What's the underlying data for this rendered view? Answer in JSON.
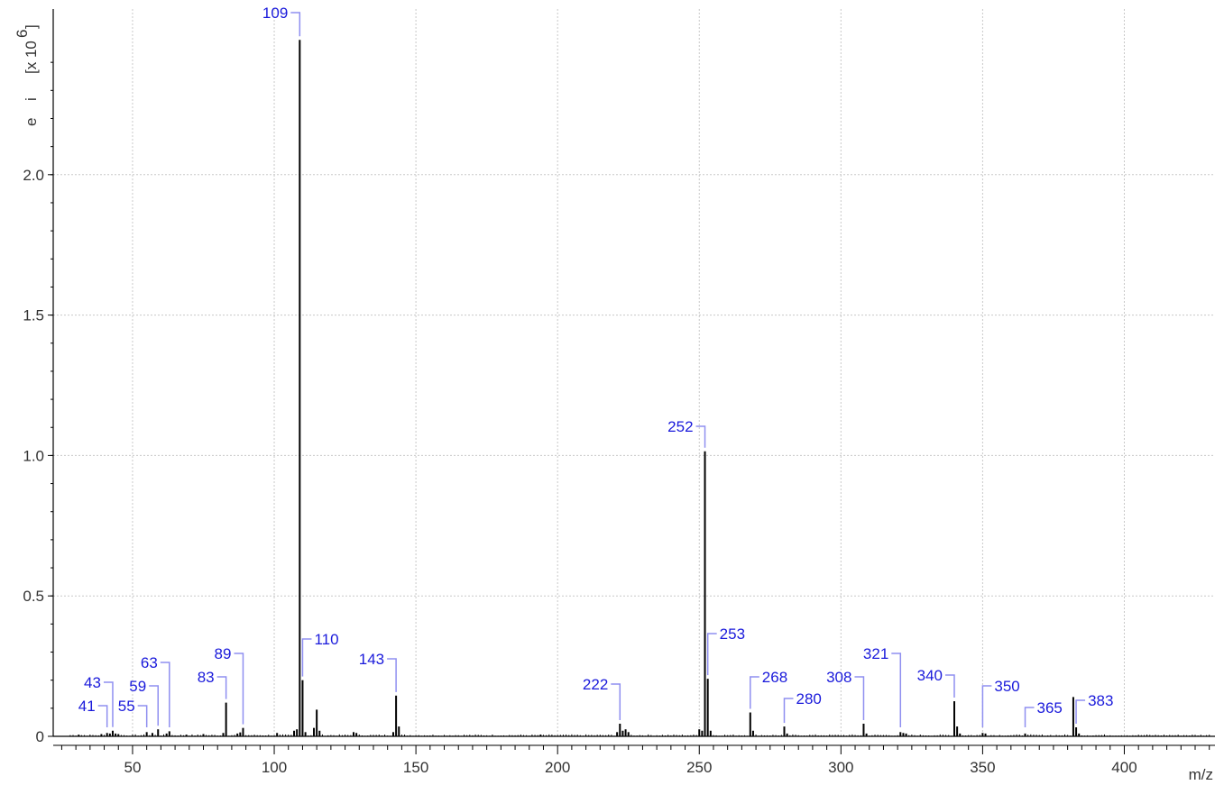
{
  "chart_data": {
    "type": "bar",
    "title": "",
    "xlabel": "m/z",
    "ylabel_parts": [
      "e",
      "i",
      "[x 10",
      "6",
      "]"
    ],
    "xlim": [
      22,
      432
    ],
    "ylim": [
      0,
      2.5
    ],
    "x_ticks": [
      50,
      100,
      150,
      200,
      250,
      300,
      350,
      400
    ],
    "y_ticks": [
      0,
      0.5,
      1.0,
      1.5,
      2.0
    ],
    "y_tick_labels": [
      "0",
      "0.5",
      "1.0",
      "1.5",
      "2.0"
    ],
    "grid": true,
    "colors": {
      "peak": "#000000",
      "label": "#1a1adb",
      "leader": "#8f8ff0",
      "grid": "#c8c8c8",
      "axis": "#000000"
    },
    "labeled_peaks": [
      {
        "mz": 41,
        "label": "41",
        "intensity": 0.012
      },
      {
        "mz": 43,
        "label": "43",
        "intensity": 0.02
      },
      {
        "mz": 55,
        "label": "55",
        "intensity": 0.015
      },
      {
        "mz": 59,
        "label": "59",
        "intensity": 0.025
      },
      {
        "mz": 63,
        "label": "63",
        "intensity": 0.018
      },
      {
        "mz": 83,
        "label": "83",
        "intensity": 0.12
      },
      {
        "mz": 89,
        "label": "89",
        "intensity": 0.03
      },
      {
        "mz": 109,
        "label": "109",
        "intensity": 2.48
      },
      {
        "mz": 110,
        "label": "110",
        "intensity": 0.2
      },
      {
        "mz": 143,
        "label": "143",
        "intensity": 0.145
      },
      {
        "mz": 222,
        "label": "222",
        "intensity": 0.045
      },
      {
        "mz": 252,
        "label": "252",
        "intensity": 1.015
      },
      {
        "mz": 253,
        "label": "253",
        "intensity": 0.205
      },
      {
        "mz": 268,
        "label": "268",
        "intensity": 0.085
      },
      {
        "mz": 280,
        "label": "280",
        "intensity": 0.035
      },
      {
        "mz": 308,
        "label": "308",
        "intensity": 0.045
      },
      {
        "mz": 321,
        "label": "321",
        "intensity": 0.015
      },
      {
        "mz": 340,
        "label": "340",
        "intensity": 0.125
      },
      {
        "mz": 350,
        "label": "350",
        "intensity": 0.012
      },
      {
        "mz": 365,
        "label": "365",
        "intensity": 0.01
      },
      {
        "mz": 383,
        "label": "383",
        "intensity": 0.032
      }
    ],
    "minor_peaks": [
      {
        "mz": 31,
        "intensity": 0.006
      },
      {
        "mz": 39,
        "intensity": 0.008
      },
      {
        "mz": 42,
        "intensity": 0.01
      },
      {
        "mz": 44,
        "intensity": 0.01
      },
      {
        "mz": 45,
        "intensity": 0.008
      },
      {
        "mz": 57,
        "intensity": 0.012
      },
      {
        "mz": 62,
        "intensity": 0.01
      },
      {
        "mz": 69,
        "intensity": 0.006
      },
      {
        "mz": 75,
        "intensity": 0.008
      },
      {
        "mz": 82,
        "intensity": 0.012
      },
      {
        "mz": 87,
        "intensity": 0.01
      },
      {
        "mz": 88,
        "intensity": 0.014
      },
      {
        "mz": 101,
        "intensity": 0.012
      },
      {
        "mz": 107,
        "intensity": 0.02
      },
      {
        "mz": 108,
        "intensity": 0.025
      },
      {
        "mz": 111,
        "intensity": 0.015
      },
      {
        "mz": 114,
        "intensity": 0.03
      },
      {
        "mz": 115,
        "intensity": 0.095
      },
      {
        "mz": 116,
        "intensity": 0.02
      },
      {
        "mz": 128,
        "intensity": 0.015
      },
      {
        "mz": 129,
        "intensity": 0.012
      },
      {
        "mz": 142,
        "intensity": 0.015
      },
      {
        "mz": 144,
        "intensity": 0.035
      },
      {
        "mz": 194,
        "intensity": 0.006
      },
      {
        "mz": 221,
        "intensity": 0.015
      },
      {
        "mz": 223,
        "intensity": 0.02
      },
      {
        "mz": 224,
        "intensity": 0.025
      },
      {
        "mz": 225,
        "intensity": 0.015
      },
      {
        "mz": 250,
        "intensity": 0.025
      },
      {
        "mz": 251,
        "intensity": 0.02
      },
      {
        "mz": 254,
        "intensity": 0.02
      },
      {
        "mz": 269,
        "intensity": 0.02
      },
      {
        "mz": 281,
        "intensity": 0.01
      },
      {
        "mz": 309,
        "intensity": 0.01
      },
      {
        "mz": 322,
        "intensity": 0.012
      },
      {
        "mz": 323,
        "intensity": 0.01
      },
      {
        "mz": 341,
        "intensity": 0.035
      },
      {
        "mz": 342,
        "intensity": 0.01
      },
      {
        "mz": 351,
        "intensity": 0.01
      },
      {
        "mz": 382,
        "intensity": 0.14
      },
      {
        "mz": 384,
        "intensity": 0.01
      }
    ]
  }
}
